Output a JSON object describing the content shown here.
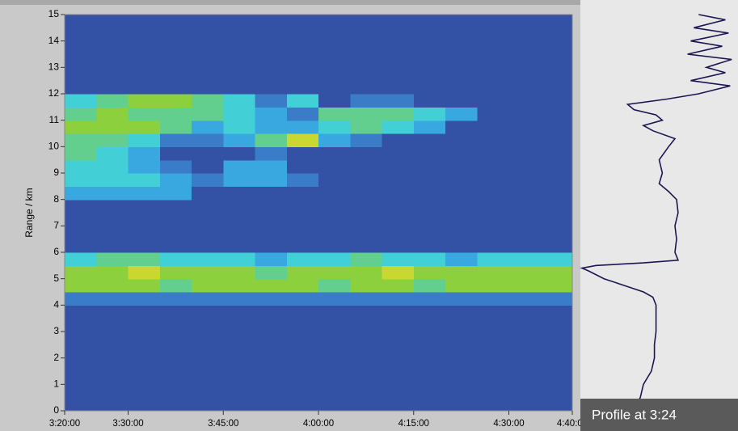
{
  "chart_data": [
    {
      "type": "heatmap",
      "y_label": "Range / km",
      "x": [
        202.5,
        207.5,
        212.5,
        217.5,
        222.5,
        227.5,
        232.5,
        237.5,
        242.5,
        247.5,
        252.5,
        257.5,
        262.5,
        267.5,
        272.5,
        277.5
      ],
      "y": [
        0.25,
        0.75,
        1.25,
        1.75,
        2.25,
        2.75,
        3.25,
        3.75,
        4.25,
        4.75,
        5.25,
        5.75,
        6.25,
        6.75,
        7.25,
        7.75,
        8.25,
        8.75,
        9.25,
        9.75,
        10.25,
        10.75,
        11.25,
        11.75,
        12.25,
        12.75,
        13.25,
        13.75,
        14.25,
        14.75
      ],
      "z": [
        [
          2,
          2,
          2,
          2,
          2,
          2,
          2,
          2,
          2,
          2,
          2,
          2,
          2,
          2,
          2,
          2
        ],
        [
          2,
          2,
          2,
          2,
          2,
          2,
          2,
          2,
          2,
          2,
          2,
          2,
          2,
          2,
          2,
          2
        ],
        [
          2,
          2,
          2,
          2,
          2,
          2,
          2,
          2,
          2,
          2,
          2,
          2,
          2,
          2,
          2,
          2
        ],
        [
          2,
          2,
          2,
          2,
          2,
          2,
          2,
          2,
          2,
          2,
          2,
          2,
          2,
          2,
          2,
          2
        ],
        [
          2,
          2,
          2,
          2,
          2,
          2,
          2,
          2,
          2,
          2,
          2,
          2,
          2,
          2,
          2,
          2
        ],
        [
          2,
          2,
          2,
          2,
          2,
          2,
          2,
          2,
          2,
          2,
          2,
          2,
          2,
          2,
          2,
          2
        ],
        [
          2,
          2,
          2,
          2,
          2,
          2,
          2,
          2,
          2,
          2,
          2,
          2,
          2,
          2,
          2,
          2
        ],
        [
          2,
          2,
          2,
          2,
          2,
          2,
          2,
          2,
          2,
          2,
          2,
          2,
          2,
          2,
          2,
          2
        ],
        [
          3,
          3,
          3,
          3,
          3,
          3,
          3,
          3,
          3,
          3,
          3,
          3,
          3,
          3,
          3,
          3
        ],
        [
          7,
          7,
          7,
          6,
          7,
          7,
          7,
          7,
          6,
          7,
          7,
          6,
          7,
          7,
          7,
          7
        ],
        [
          7,
          7,
          8,
          7,
          7,
          7,
          6,
          7,
          7,
          7,
          8,
          7,
          7,
          7,
          7,
          7
        ],
        [
          5,
          6,
          6,
          5,
          5,
          5,
          4,
          5,
          5,
          6,
          5,
          5,
          4,
          5,
          5,
          5
        ],
        [
          2,
          2,
          2,
          2,
          2,
          2,
          2,
          2,
          2,
          2,
          2,
          2,
          2,
          2,
          2,
          2
        ],
        [
          2,
          2,
          2,
          2,
          2,
          2,
          2,
          2,
          2,
          2,
          2,
          2,
          2,
          2,
          2,
          2
        ],
        [
          2,
          2,
          2,
          2,
          2,
          2,
          2,
          2,
          2,
          2,
          2,
          2,
          2,
          2,
          2,
          2
        ],
        [
          2,
          2,
          2,
          2,
          2,
          2,
          2,
          2,
          2,
          2,
          2,
          2,
          2,
          2,
          2,
          2
        ],
        [
          4,
          4,
          4,
          4,
          2,
          2,
          2,
          2,
          2,
          2,
          2,
          2,
          2,
          2,
          2,
          2
        ],
        [
          5,
          5,
          5,
          4,
          3,
          4,
          4,
          3,
          2,
          2,
          2,
          2,
          2,
          2,
          2,
          2
        ],
        [
          5,
          5,
          4,
          3,
          2,
          4,
          4,
          2,
          2,
          2,
          2,
          2,
          2,
          2,
          2,
          2
        ],
        [
          6,
          5,
          4,
          2,
          2,
          2,
          3,
          2,
          2,
          2,
          2,
          2,
          2,
          2,
          2,
          2
        ],
        [
          6,
          6,
          5,
          3,
          3,
          4,
          6,
          8,
          4,
          3,
          2,
          2,
          2,
          2,
          2,
          2
        ],
        [
          7,
          7,
          7,
          6,
          4,
          5,
          4,
          4,
          5,
          6,
          5,
          4,
          2,
          2,
          2,
          2
        ],
        [
          6,
          7,
          6,
          6,
          6,
          5,
          4,
          3,
          6,
          6,
          6,
          5,
          4,
          2,
          2,
          2
        ],
        [
          5,
          6,
          7,
          7,
          6,
          5,
          3,
          5,
          2,
          3,
          3,
          2,
          2,
          2,
          2,
          2
        ],
        [
          2,
          2,
          2,
          2,
          2,
          2,
          2,
          2,
          2,
          2,
          2,
          2,
          2,
          2,
          2,
          2
        ],
        [
          2,
          2,
          2,
          2,
          2,
          2,
          2,
          2,
          2,
          2,
          2,
          2,
          2,
          2,
          2,
          2
        ],
        [
          2,
          2,
          2,
          2,
          2,
          2,
          2,
          2,
          2,
          2,
          2,
          2,
          2,
          2,
          2,
          2
        ],
        [
          2,
          2,
          2,
          2,
          2,
          2,
          2,
          2,
          2,
          2,
          2,
          2,
          2,
          2,
          2,
          2
        ],
        [
          2,
          2,
          2,
          2,
          2,
          2,
          2,
          2,
          2,
          2,
          2,
          2,
          2,
          2,
          2,
          2
        ],
        [
          2,
          2,
          2,
          2,
          2,
          2,
          2,
          2,
          2,
          2,
          2,
          2,
          2,
          2,
          2,
          2
        ]
      ],
      "colorscale": [
        "#2c4a9c",
        "#2f4fa0",
        "#3352a6",
        "#3a7cc8",
        "#3aa8e0",
        "#42cfd6",
        "#62cf8e",
        "#8cd03e",
        "#c8d830",
        "#f0c020"
      ],
      "xlim": [
        200,
        280
      ],
      "ylim": [
        0,
        15
      ],
      "xticks": [
        {
          "value": 200,
          "label": "3:20:00"
        },
        {
          "value": 210,
          "label": "3:30:00"
        },
        {
          "value": 225,
          "label": "3:45:00"
        },
        {
          "value": 240,
          "label": "4:00:00"
        },
        {
          "value": 255,
          "label": "4:15:00"
        },
        {
          "value": 270,
          "label": "4:30:00"
        },
        {
          "value": 280,
          "label": "4:40:00"
        }
      ],
      "yticks": [
        0,
        1,
        2,
        3,
        4,
        5,
        6,
        7,
        8,
        9,
        10,
        11,
        12,
        13,
        14,
        15
      ]
    },
    {
      "type": "profile",
      "title": "Profile at 3:24",
      "color": "#1c1650",
      "y": [
        0.3,
        0.5,
        1,
        1.5,
        2,
        2.5,
        3,
        3.5,
        4,
        4.3,
        4.5,
        4.8,
        5.0,
        5.3,
        5.4,
        5.5,
        5.6,
        5.7,
        6,
        6.5,
        7,
        7.5,
        8,
        8.3,
        8.6,
        9,
        9.5,
        10,
        10.3,
        10.6,
        10.8,
        11,
        11.2,
        11.4,
        11.6,
        11.8,
        12,
        12.3,
        12.5,
        12.8,
        13,
        13.3,
        13.5,
        13.8,
        14,
        14.3,
        14.5,
        14.8,
        15
      ],
      "x": [
        36,
        38,
        40,
        45,
        47,
        47,
        48,
        48,
        48,
        46,
        40,
        25,
        15,
        5,
        1,
        10,
        40,
        62,
        60,
        61,
        60,
        62,
        61,
        56,
        50,
        52,
        50,
        56,
        60,
        46,
        40,
        52,
        48,
        34,
        30,
        55,
        75,
        95,
        70,
        92,
        80,
        96,
        68,
        90,
        70,
        94,
        72,
        92,
        75
      ],
      "xlim": [
        0,
        100
      ],
      "ylim": [
        0,
        15
      ]
    }
  ]
}
